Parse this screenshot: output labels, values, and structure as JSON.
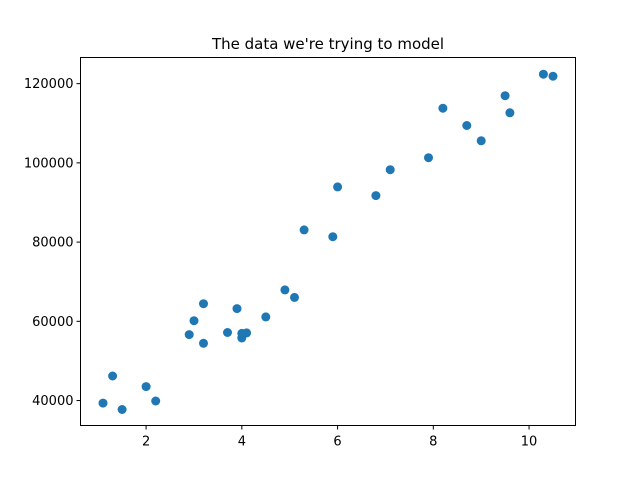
{
  "chart_data": {
    "type": "scatter",
    "title": "The data we're trying to model",
    "xlabel": "",
    "ylabel": "",
    "xlim": [
      0.63,
      10.97
    ],
    "ylim": [
      33700,
      126600
    ],
    "x_ticks": [
      2,
      4,
      6,
      8,
      10
    ],
    "y_ticks": [
      40000,
      60000,
      80000,
      100000,
      120000
    ],
    "x_tick_labels": [
      "2",
      "4",
      "6",
      "8",
      "10"
    ],
    "y_tick_labels": [
      "40000",
      "60000",
      "80000",
      "100000",
      "120000"
    ],
    "grid": false,
    "legend": "none",
    "marker_color": "#1f77b4",
    "points": [
      {
        "x": 1.1,
        "y": 39343
      },
      {
        "x": 1.3,
        "y": 46205
      },
      {
        "x": 1.5,
        "y": 37731
      },
      {
        "x": 2.0,
        "y": 43525
      },
      {
        "x": 2.2,
        "y": 39891
      },
      {
        "x": 2.9,
        "y": 56642
      },
      {
        "x": 3.0,
        "y": 60150
      },
      {
        "x": 3.2,
        "y": 54445
      },
      {
        "x": 3.2,
        "y": 64445
      },
      {
        "x": 3.7,
        "y": 57189
      },
      {
        "x": 3.9,
        "y": 63218
      },
      {
        "x": 4.0,
        "y": 55794
      },
      {
        "x": 4.0,
        "y": 56957
      },
      {
        "x": 4.1,
        "y": 57081
      },
      {
        "x": 4.5,
        "y": 61111
      },
      {
        "x": 4.9,
        "y": 67938
      },
      {
        "x": 5.1,
        "y": 66029
      },
      {
        "x": 5.3,
        "y": 83088
      },
      {
        "x": 5.9,
        "y": 81363
      },
      {
        "x": 6.0,
        "y": 93940
      },
      {
        "x": 6.8,
        "y": 91738
      },
      {
        "x": 7.1,
        "y": 98273
      },
      {
        "x": 7.9,
        "y": 101302
      },
      {
        "x": 8.2,
        "y": 113812
      },
      {
        "x": 8.7,
        "y": 109431
      },
      {
        "x": 9.0,
        "y": 105582
      },
      {
        "x": 9.5,
        "y": 116969
      },
      {
        "x": 9.6,
        "y": 112635
      },
      {
        "x": 10.3,
        "y": 122391
      },
      {
        "x": 10.5,
        "y": 121872
      }
    ]
  }
}
